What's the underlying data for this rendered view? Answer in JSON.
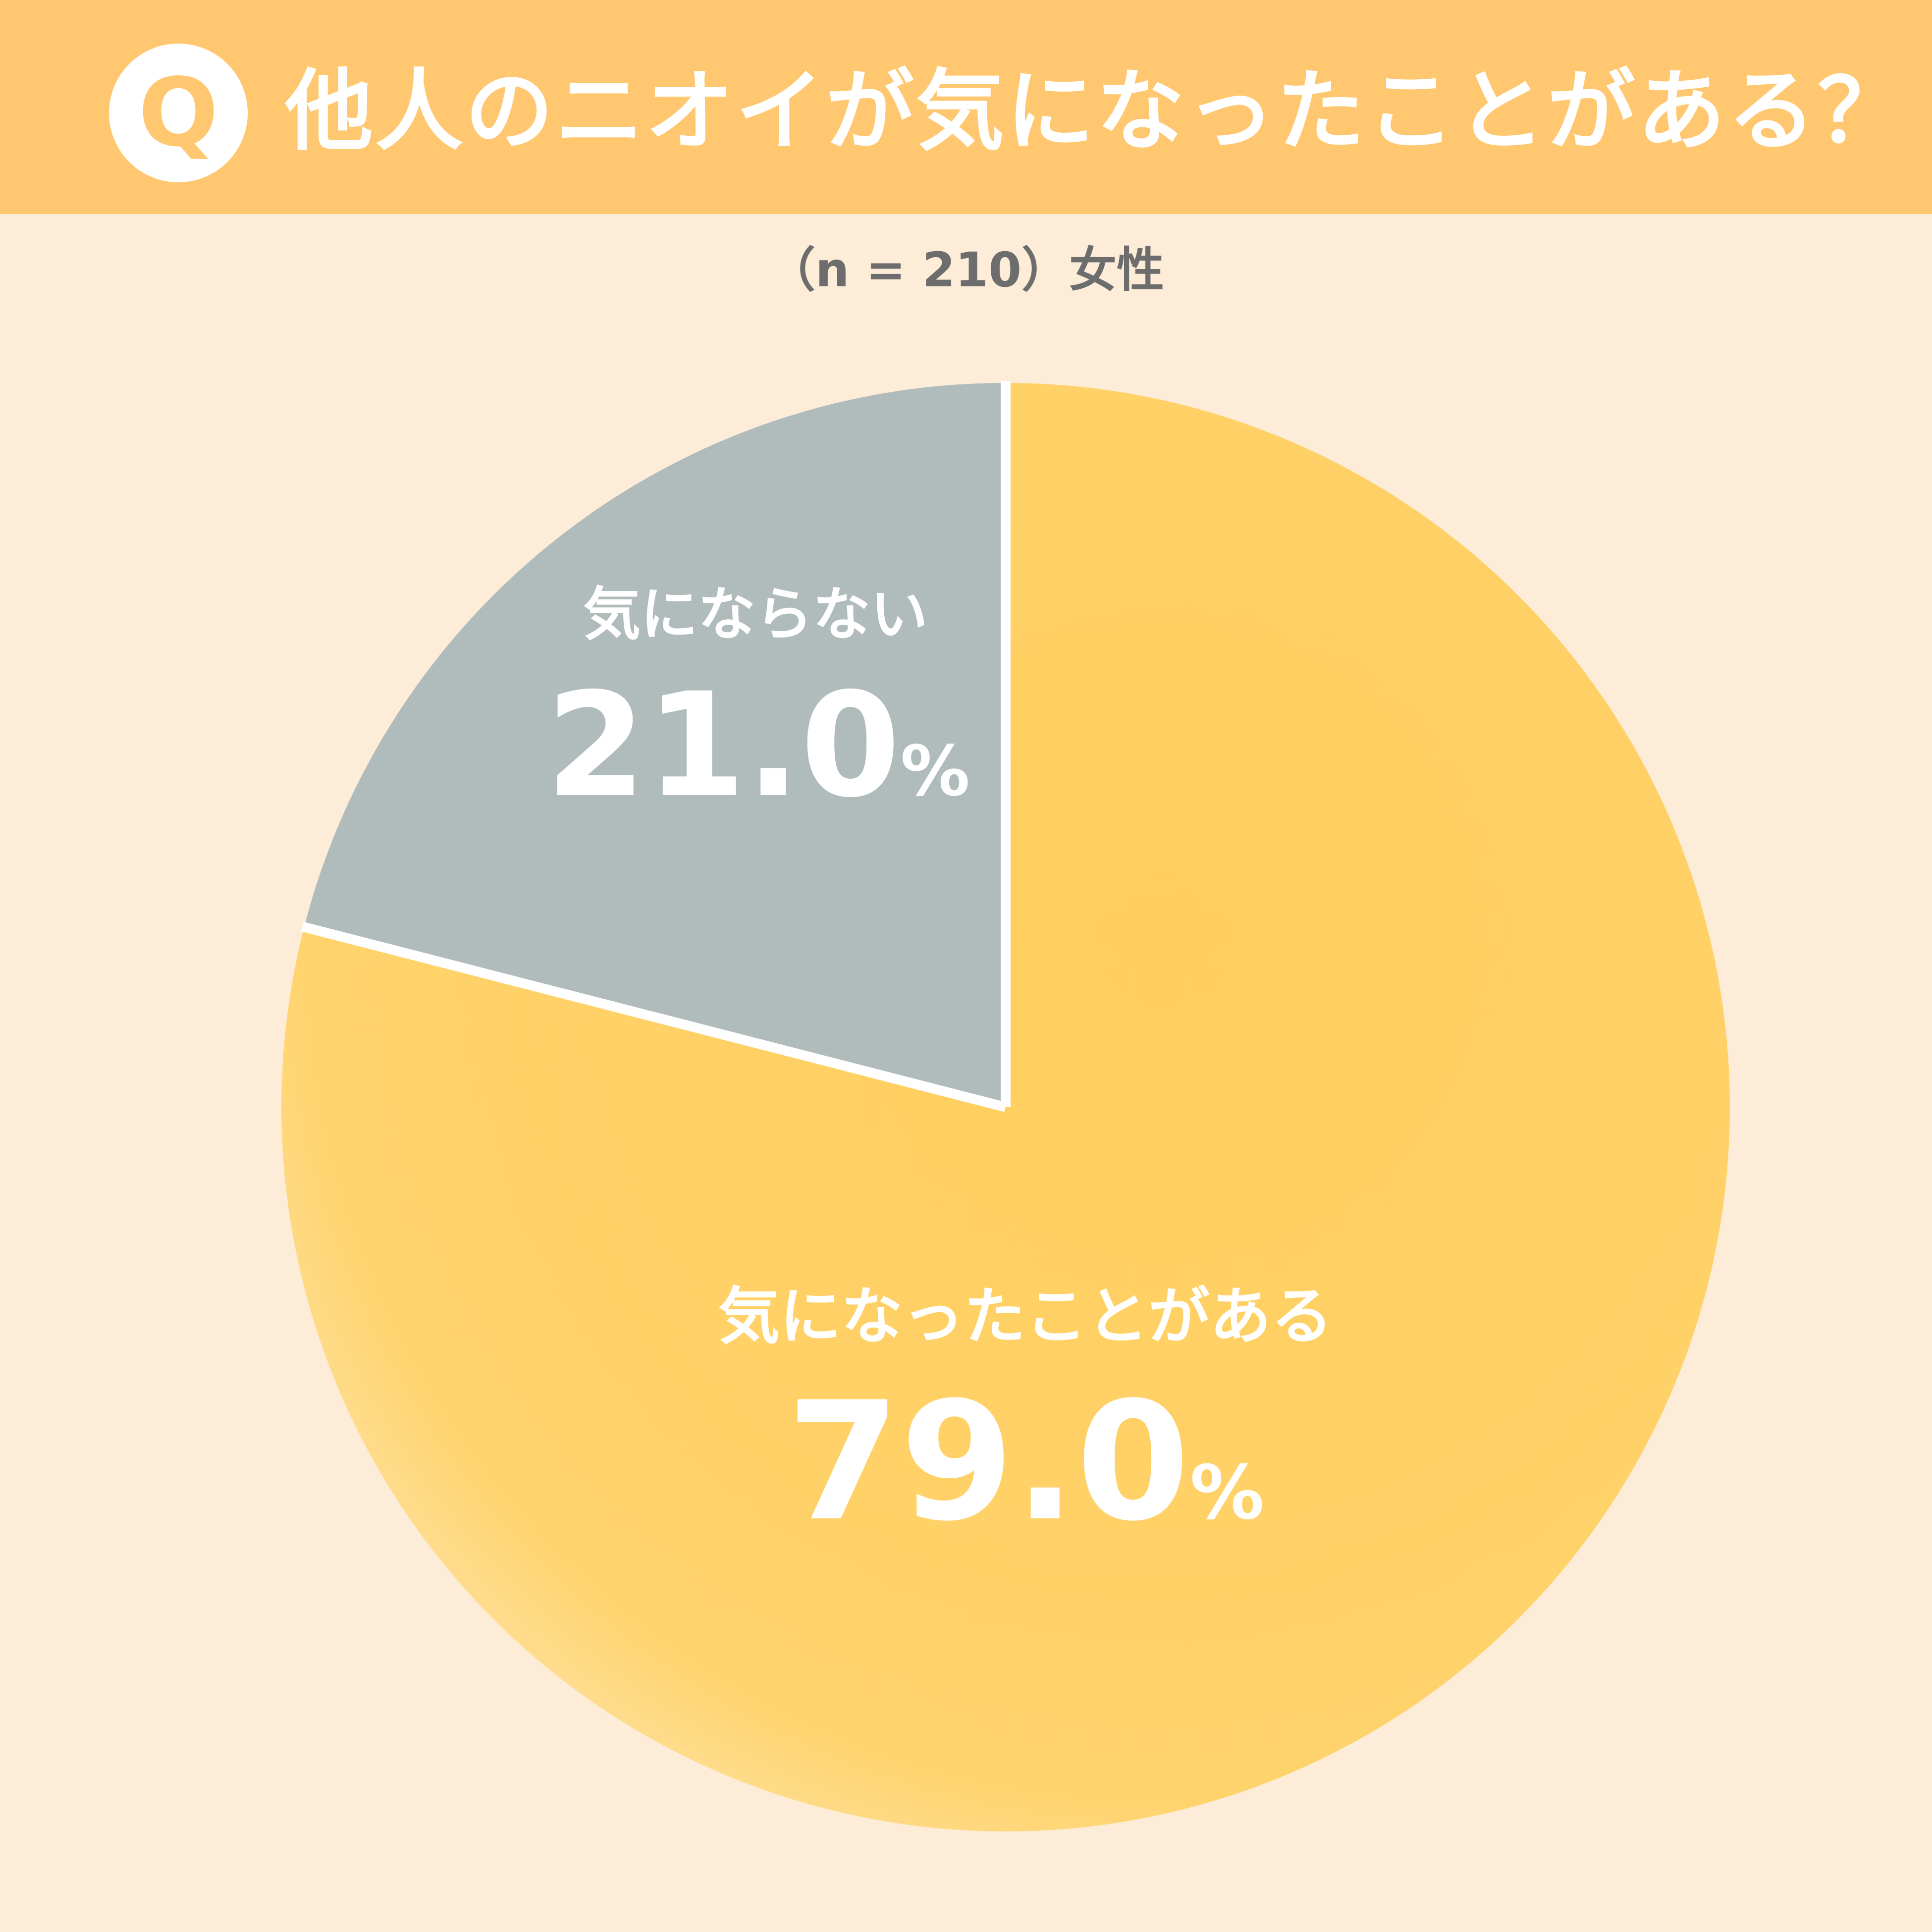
{
  "header": {
    "badge_letter": "Q",
    "title": "他人のニオイが気になったことがある？",
    "sample_note": "（n = 210）女性"
  },
  "colors": {
    "background": "#fdedd8",
    "header_band": "#ffc770",
    "slice_yes": "#ffcd5d",
    "slice_no": "#b0bbbc",
    "separator": "#ffffff",
    "label_text": "#ffffff"
  },
  "chart_data": {
    "type": "pie",
    "title": "他人のニオイが気になったことがある？",
    "slices": [
      {
        "label": "気になったことがある",
        "value": 79.0,
        "display": "79.0",
        "unit": "%"
      },
      {
        "label": "気にならない",
        "value": 21.0,
        "display": "21.0",
        "unit": "%"
      }
    ],
    "start_angle_note": "clockwise from 12 o'clock, first slice first"
  }
}
